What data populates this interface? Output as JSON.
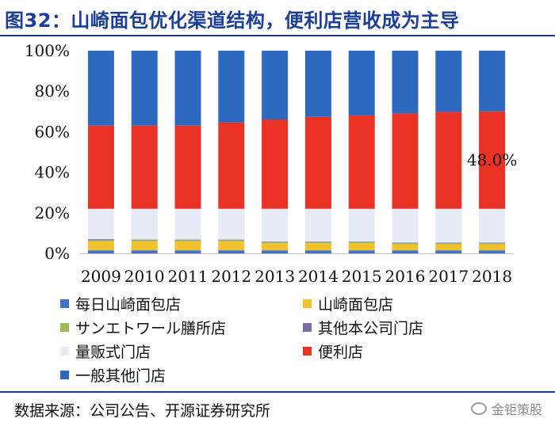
{
  "header": {
    "title": "图32：山崎面包优化渠道结构，便利店营收成为主导"
  },
  "footer": {
    "source": "数据来源：公司公告、开源证券研究所",
    "watermark": "金钜策股"
  },
  "chart_data": {
    "type": "bar",
    "stacked": true,
    "title": "图32：山崎面包优化渠道结构，便利店营收成为主导",
    "xlabel": "",
    "ylabel": "",
    "ylim": [
      0,
      100
    ],
    "yticks": [
      "0%",
      "20%",
      "40%",
      "60%",
      "80%",
      "100%"
    ],
    "categories": [
      "2009",
      "2010",
      "2011",
      "2012",
      "2013",
      "2014",
      "2015",
      "2016",
      "2017",
      "2018"
    ],
    "series": [
      {
        "name": "每日山崎面包店",
        "color": "#4472c4",
        "values": [
          1.5,
          1.5,
          1.5,
          1.5,
          1.5,
          1.5,
          1.5,
          1.5,
          1.5,
          1.5
        ]
      },
      {
        "name": "山崎面包店",
        "color": "#f2c12e",
        "values": [
          4.5,
          4.5,
          4.5,
          4.5,
          3.5,
          3.5,
          3.5,
          3.0,
          3.0,
          3.0
        ]
      },
      {
        "name": "サンエトワール膳所店",
        "color": "#9bbb59",
        "values": [
          0.5,
          0.5,
          0.5,
          0.5,
          0.5,
          0.5,
          0.5,
          0.5,
          0.5,
          0.5
        ]
      },
      {
        "name": "其他本公司门店",
        "color": "#7f6aa8",
        "values": [
          0.5,
          0.3,
          0.3,
          0.3,
          0.3,
          0.3,
          0.3,
          0.3,
          0.3,
          0.3
        ]
      },
      {
        "name": "量贩式门店",
        "color": "#e7ebf5",
        "values": [
          15.0,
          15.2,
          15.2,
          15.2,
          16.2,
          16.2,
          16.2,
          16.7,
          16.7,
          16.7
        ]
      },
      {
        "name": "便利店",
        "color": "#ea3324",
        "values": [
          41.0,
          41.0,
          41.0,
          42.5,
          44.0,
          45.3,
          46.0,
          47.0,
          47.8,
          48.0
        ]
      },
      {
        "name": "一般其他门店",
        "color": "#2e69c0",
        "values": [
          37.0,
          37.0,
          37.0,
          35.5,
          34.0,
          32.7,
          32.0,
          31.0,
          30.2,
          30.0
        ]
      }
    ],
    "annotations": [
      {
        "category": "2018",
        "series": "便利店",
        "text": "48.0%"
      }
    ]
  }
}
